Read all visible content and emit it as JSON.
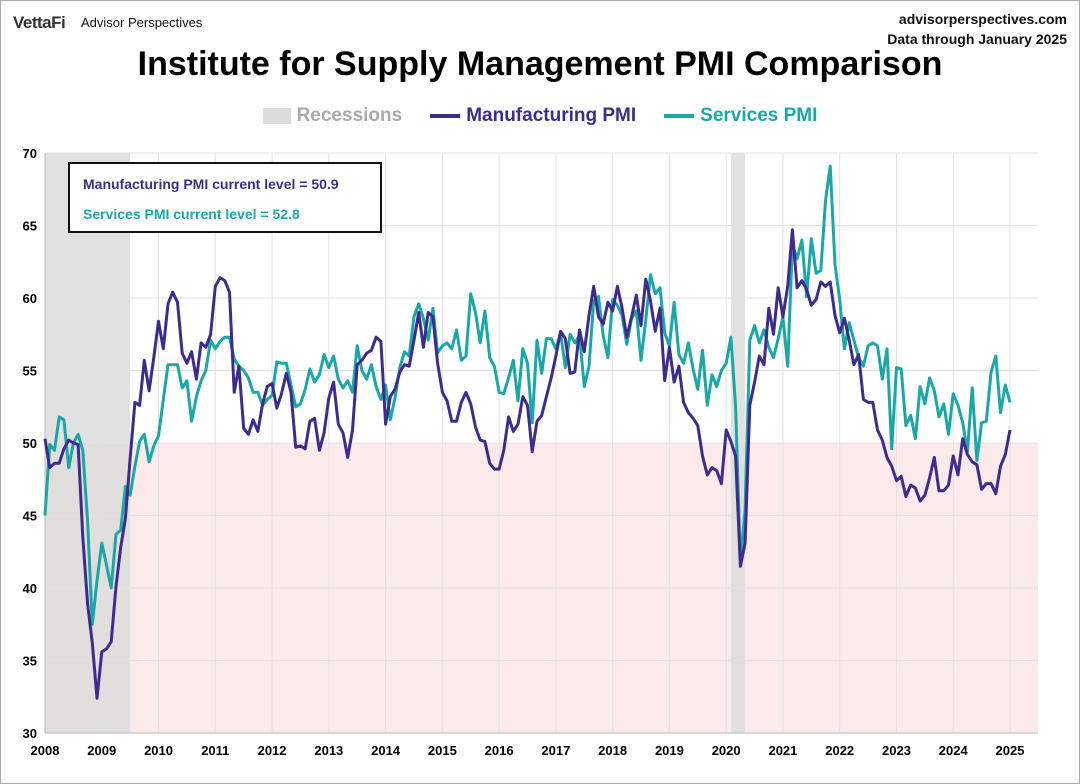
{
  "header": {
    "logo": "VettaFi",
    "brand": "Advisor Perspectives",
    "site": "advisorperspectives.com",
    "data_through": "Data through January 2025"
  },
  "colors": {
    "manufacturing": "#3d2c8d",
    "services": "#1aa7a5",
    "recession": "#dcdcdc",
    "contraction": "#fbeaea"
  },
  "chart_data": {
    "type": "line",
    "title": "Institute for Supply Management PMI Comparison",
    "legend": [
      "Recessions",
      "Manufacturing PMI",
      "Services PMI"
    ],
    "legend_position": "top",
    "grid": true,
    "ylim": [
      30,
      70
    ],
    "yticks": [
      30,
      35,
      40,
      45,
      50,
      55,
      60,
      65,
      70
    ],
    "xticks": [
      "2008",
      "2009",
      "2010",
      "2011",
      "2012",
      "2013",
      "2014",
      "2015",
      "2016",
      "2017",
      "2018",
      "2019",
      "2020",
      "2021",
      "2022",
      "2023",
      "2024",
      "2025"
    ],
    "x_start": "2008-01",
    "x_end": "2025-01",
    "frequency": "monthly",
    "contraction_threshold": 50,
    "recessions": [
      [
        "2007-12",
        "2009-06"
      ],
      [
        "2020-02",
        "2020-04"
      ]
    ],
    "annotations": [
      "Manufacturing PMI current level = 50.9",
      "Services PMI current level = 52.8"
    ],
    "series": [
      {
        "name": "Manufacturing PMI",
        "values": [
          50.3,
          48.3,
          48.6,
          48.6,
          49.6,
          50.2,
          50.0,
          49.9,
          43.5,
          38.9,
          36.2,
          32.4,
          35.6,
          35.8,
          36.3,
          40.1,
          42.8,
          44.8,
          48.9,
          52.8,
          52.6,
          55.7,
          53.6,
          55.9,
          58.4,
          56.5,
          59.6,
          60.4,
          59.7,
          56.2,
          55.5,
          56.3,
          54.4,
          56.9,
          56.6,
          57.5,
          60.8,
          61.4,
          61.2,
          60.4,
          53.5,
          55.3,
          51.0,
          50.6,
          51.6,
          50.8,
          52.7,
          53.9,
          54.1,
          52.4,
          53.4,
          54.8,
          53.5,
          49.7,
          49.8,
          49.6,
          51.5,
          51.7,
          49.5,
          50.7,
          53.1,
          54.2,
          51.3,
          50.7,
          49.0,
          50.9,
          55.4,
          55.7,
          56.2,
          56.4,
          57.3,
          57.0,
          51.3,
          53.2,
          53.7,
          54.9,
          55.4,
          55.3,
          57.1,
          59.0,
          56.6,
          59.0,
          58.7,
          55.5,
          53.5,
          52.9,
          51.5,
          51.5,
          52.8,
          53.5,
          52.7,
          51.1,
          50.2,
          50.1,
          48.6,
          48.2,
          48.2,
          49.5,
          51.8,
          50.8,
          51.3,
          53.2,
          52.6,
          49.4,
          51.5,
          51.9,
          53.2,
          54.5,
          56.0,
          57.7,
          57.2,
          54.8,
          54.9,
          57.8,
          56.3,
          58.8,
          60.8,
          58.7,
          58.2,
          59.7,
          59.1,
          60.8,
          59.3,
          57.3,
          58.7,
          60.2,
          58.1,
          61.3,
          59.8,
          57.7,
          59.3,
          54.3,
          56.6,
          54.2,
          55.3,
          52.8,
          52.1,
          51.7,
          51.2,
          49.1,
          47.8,
          48.3,
          48.1,
          47.2,
          50.9,
          50.1,
          49.1,
          41.5,
          43.1,
          52.6,
          54.2,
          56.0,
          55.4,
          59.3,
          57.5,
          60.7,
          58.7,
          60.8,
          64.7,
          60.7,
          61.2,
          60.6,
          59.5,
          59.9,
          61.1,
          60.8,
          61.1,
          58.8,
          57.6,
          58.6,
          57.1,
          55.4,
          56.1,
          53.0,
          52.8,
          52.8,
          50.9,
          50.2,
          49.0,
          48.4,
          47.4,
          47.7,
          46.3,
          47.1,
          46.9,
          46.0,
          46.4,
          47.6,
          49.0,
          46.7,
          46.7,
          47.1,
          49.1,
          47.8,
          50.3,
          49.2,
          48.7,
          48.5,
          46.8,
          47.2,
          47.2,
          46.5,
          48.4,
          49.2,
          50.9
        ]
      },
      {
        "name": "Services PMI",
        "values": [
          45.0,
          49.9,
          49.5,
          51.8,
          51.6,
          48.3,
          50.0,
          50.6,
          49.5,
          44.6,
          37.5,
          40.5,
          43.1,
          41.6,
          40.0,
          43.7,
          44.0,
          47.0,
          46.4,
          48.4,
          50.1,
          50.6,
          48.7,
          49.8,
          50.5,
          53.0,
          55.4,
          55.4,
          55.4,
          53.8,
          54.3,
          51.5,
          53.2,
          54.3,
          55.0,
          57.1,
          56.5,
          57.0,
          57.3,
          57.3,
          55.8,
          55.3,
          55.0,
          54.5,
          53.5,
          53.5,
          52.6,
          53.0,
          53.3,
          55.6,
          55.5,
          55.5,
          54.0,
          52.5,
          52.7,
          53.7,
          55.1,
          54.2,
          54.7,
          56.1,
          55.2,
          56.0,
          54.4,
          53.8,
          54.3,
          53.5,
          56.7,
          55.0,
          54.4,
          55.4,
          53.9,
          53.0,
          54.0,
          51.6,
          53.1,
          55.2,
          56.3,
          56.0,
          58.7,
          59.6,
          58.6,
          57.1,
          59.3,
          56.2,
          56.7,
          56.9,
          56.5,
          57.8,
          55.7,
          56.0,
          60.3,
          59.0,
          56.9,
          59.1,
          55.9,
          55.3,
          53.5,
          53.4,
          54.5,
          55.7,
          52.9,
          56.5,
          55.5,
          51.4,
          57.1,
          54.8,
          57.2,
          57.2,
          56.5,
          57.6,
          55.2,
          57.5,
          56.9,
          57.4,
          53.9,
          55.3,
          59.8,
          60.1,
          57.4,
          55.9,
          59.9,
          59.5,
          58.8,
          56.8,
          58.6,
          59.1,
          55.7,
          58.5,
          61.6,
          60.3,
          60.7,
          57.6,
          56.7,
          59.7,
          56.1,
          55.5,
          56.9,
          55.1,
          53.7,
          56.4,
          52.6,
          54.7,
          53.9,
          55.0,
          55.5,
          57.3,
          52.5,
          41.8,
          45.4,
          57.1,
          58.1,
          56.9,
          57.8,
          56.6,
          55.9,
          57.2,
          58.7,
          55.3,
          63.7,
          62.7,
          64.0,
          60.1,
          64.1,
          61.7,
          61.9,
          66.7,
          69.1,
          62.3,
          59.9,
          56.5,
          58.3,
          57.1,
          55.9,
          55.3,
          56.7,
          56.9,
          56.7,
          54.4,
          56.5,
          49.6,
          55.2,
          55.1,
          51.2,
          51.9,
          50.3,
          53.9,
          52.7,
          54.5,
          53.6,
          51.8,
          52.7,
          50.6,
          53.4,
          52.6,
          51.4,
          49.4,
          53.8,
          48.8,
          51.4,
          51.5,
          54.9,
          56.0,
          52.1,
          54.0,
          52.8
        ]
      }
    ]
  }
}
